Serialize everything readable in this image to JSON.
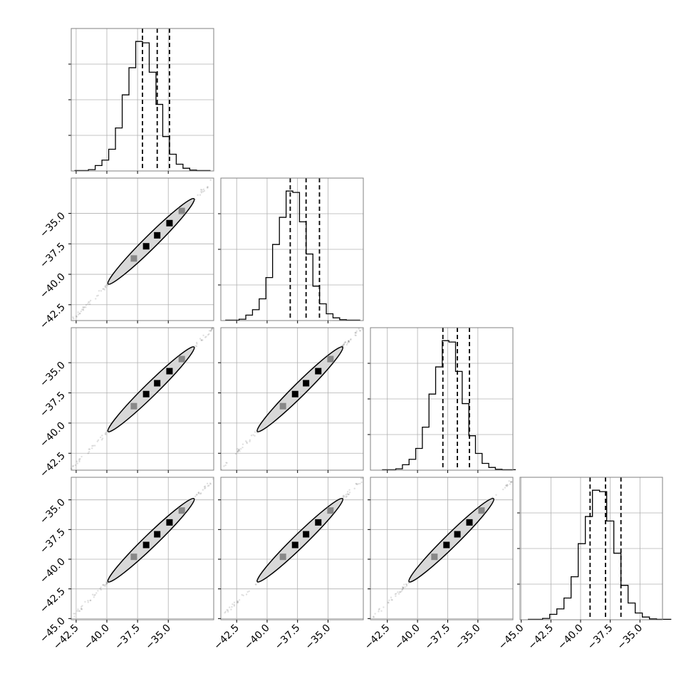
{
  "chart_data": {
    "type": "corner",
    "grid": true,
    "dimensions": 4,
    "quantile_lines": "dashed",
    "marginals": [
      {
        "index": 0,
        "bins_x": [
          -42.6,
          -42.05,
          -41.5,
          -40.95,
          -40.4,
          -39.85,
          -39.3,
          -38.75,
          -38.2,
          -37.65,
          -37.1,
          -36.55,
          -36.0,
          -35.45,
          -34.9,
          -34.35,
          -33.8,
          -33.25,
          -32.7,
          -32.15,
          -31.6
        ],
        "counts": [
          1,
          1,
          3,
          12,
          24,
          48,
          95,
          168,
          228,
          286,
          283,
          218,
          147,
          76,
          37,
          15,
          6,
          2,
          1,
          1
        ],
        "quantiles": [
          -37.1,
          -35.9,
          -34.9
        ],
        "xlim": [
          -42.9,
          -31.3
        ],
        "x_ticks": [
          "−42.5",
          "−40.0",
          "−37.5",
          "−35.0"
        ]
      },
      {
        "index": 1,
        "bins_x": [
          -43.4,
          -42.85,
          -42.3,
          -41.75,
          -41.2,
          -40.65,
          -40.1,
          -39.55,
          -38.99,
          -38.44,
          -37.89,
          -37.34,
          -36.79,
          -36.24,
          -35.69,
          -35.14,
          -34.59,
          -34.04,
          -33.49,
          -32.94,
          -32.39
        ],
        "counts": [
          1,
          1,
          3,
          12,
          24,
          48,
          95,
          168,
          228,
          286,
          283,
          218,
          147,
          76,
          37,
          15,
          6,
          2,
          1,
          1
        ],
        "quantiles": [
          -38.1,
          -36.8,
          -35.7
        ],
        "xlim": [
          -43.8,
          -32.1
        ],
        "x_ticks": [
          "−42.5",
          "−40.0",
          "−37.5",
          "−35.0"
        ]
      },
      {
        "index": 2,
        "bins_x": [
          -42.9,
          -42.35,
          -41.8,
          -41.25,
          -40.7,
          -40.15,
          -39.6,
          -39.05,
          -38.5,
          -37.95,
          -37.4,
          -36.85,
          -36.3,
          -35.75,
          -35.2,
          -34.65,
          -34.1,
          -33.55,
          -33.0,
          -32.45,
          -31.9
        ],
        "counts": [
          1,
          1,
          3,
          12,
          24,
          48,
          95,
          168,
          228,
          286,
          283,
          218,
          147,
          76,
          37,
          15,
          6,
          2,
          1,
          1
        ],
        "quantiles": [
          -37.9,
          -36.7,
          -35.7
        ],
        "xlim": [
          -43.9,
          -32.1
        ],
        "x_ticks": [
          "−42.5",
          "−40.0",
          "−37.5",
          "−35.0"
        ]
      },
      {
        "index": 3,
        "bins_x": [
          -44.4,
          -43.8,
          -43.2,
          -42.6,
          -42.0,
          -41.4,
          -40.8,
          -40.2,
          -39.6,
          -39.0,
          -38.4,
          -37.8,
          -37.2,
          -36.6,
          -36.0,
          -35.4,
          -34.8,
          -34.2,
          -33.6,
          -33.0,
          -32.4
        ],
        "counts": [
          1,
          1,
          3,
          12,
          24,
          48,
          95,
          168,
          228,
          286,
          283,
          218,
          147,
          76,
          37,
          15,
          6,
          2,
          1,
          1
        ],
        "quantiles": [
          -39.2,
          -37.9,
          -36.6
        ],
        "xlim": [
          -45.1,
          -33.1
        ],
        "x_ticks": [
          "−45.0",
          "−42.5",
          "−40.0",
          "−37.5",
          "−35.0"
        ]
      }
    ],
    "joint_y": [
      {
        "row": 1,
        "ylim": [
          -43.8,
          -32.1
        ],
        "y_ticks": [
          -35.0,
          -37.5,
          -40.0,
          -42.5
        ],
        "y_tick_labels": [
          "−35.0",
          "−37.5",
          "−40.0",
          "−42.5"
        ]
      },
      {
        "row": 2,
        "ylim": [
          -43.9,
          -32.1
        ],
        "y_ticks": [
          -35.0,
          -37.5,
          -40.0,
          -42.5
        ],
        "y_tick_labels": [
          "−35.0",
          "−37.5",
          "−40.0",
          "−42.5"
        ]
      },
      {
        "row": 3,
        "ylim": [
          -45.1,
          -33.1
        ],
        "y_ticks": [
          -35.0,
          -37.5,
          -40.0,
          -42.5,
          -45.0
        ],
        "y_tick_labels": [
          "−35.0",
          "−37.5",
          "−40.0",
          "−42.5",
          "−45.0"
        ]
      }
    ],
    "x_tick_values": [
      [
        -42.5,
        -40.0,
        -37.5,
        -35.0
      ],
      [
        -42.5,
        -40.0,
        -37.5,
        -35.0
      ],
      [
        -42.5,
        -40.0,
        -37.5,
        -35.0
      ],
      [
        -45.0,
        -42.5,
        -40.0,
        -37.5,
        -35.0
      ]
    ]
  }
}
